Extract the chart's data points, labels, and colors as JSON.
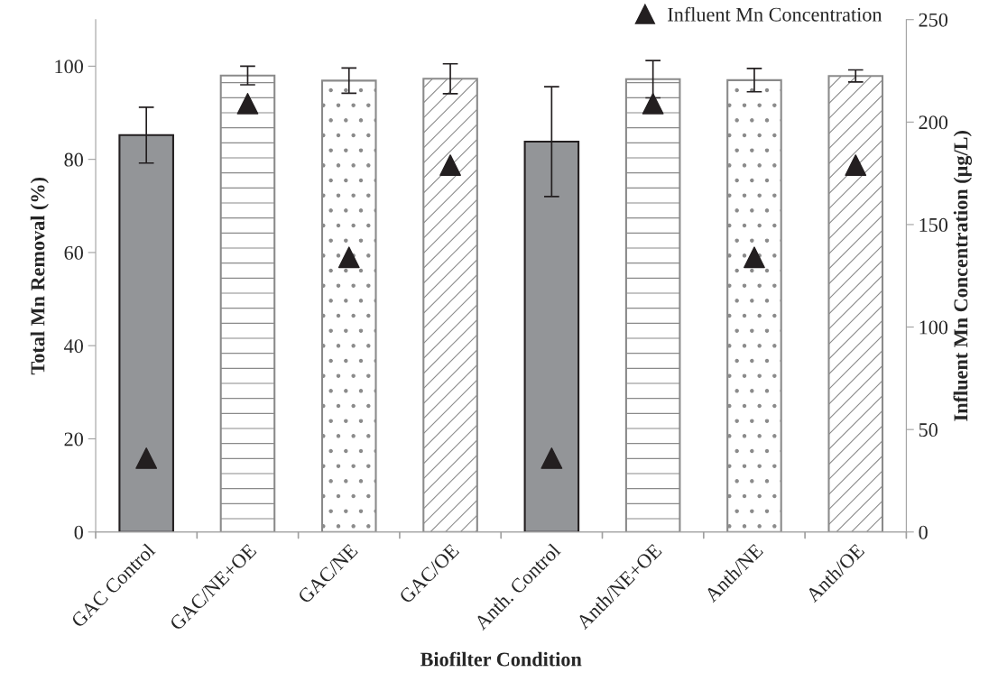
{
  "chart_data": {
    "type": "bar",
    "xlabel": "Biofilter Condition",
    "ylabel": "Total Mn Removal (%)",
    "y2label": "Influent Mn Concentration (µg/L)",
    "categories": [
      "GAC Control",
      "GAC/NE+OE",
      "GAC/NE",
      "GAC/OE",
      "Anth. Control",
      "Anth/NE+OE",
      "Anth/NE",
      "Anth/OE"
    ],
    "series": [
      {
        "colors": [
          "#939598",
          "#8a8a8a",
          "#8a8a8a",
          "#8a8a8a",
          "#939598",
          "#8a8a8a",
          "#8a8a8a",
          "#8a8a8a"
        ],
        "values": [
          85.2,
          98.0,
          96.9,
          97.3,
          83.8,
          97.2,
          97.0,
          97.9
        ],
        "errors": [
          6.0,
          2.0,
          2.7,
          3.2,
          11.8,
          4.0,
          2.5,
          1.3
        ]
      },
      {
        "type": "scatter",
        "name": "Influent Mn Concentration",
        "color": "#231f20",
        "axis": "y2",
        "marker": "triangle",
        "values": [
          36,
          209,
          134,
          179,
          36,
          209,
          134,
          179
        ]
      }
    ],
    "ylim": [
      0,
      110
    ],
    "yticks": [
      0,
      20,
      40,
      60,
      80,
      100
    ],
    "y2lim": [
      0,
      250
    ],
    "y2ticks": [
      0,
      50,
      100,
      150,
      200,
      250
    ],
    "grid": false,
    "legend": "top right"
  }
}
